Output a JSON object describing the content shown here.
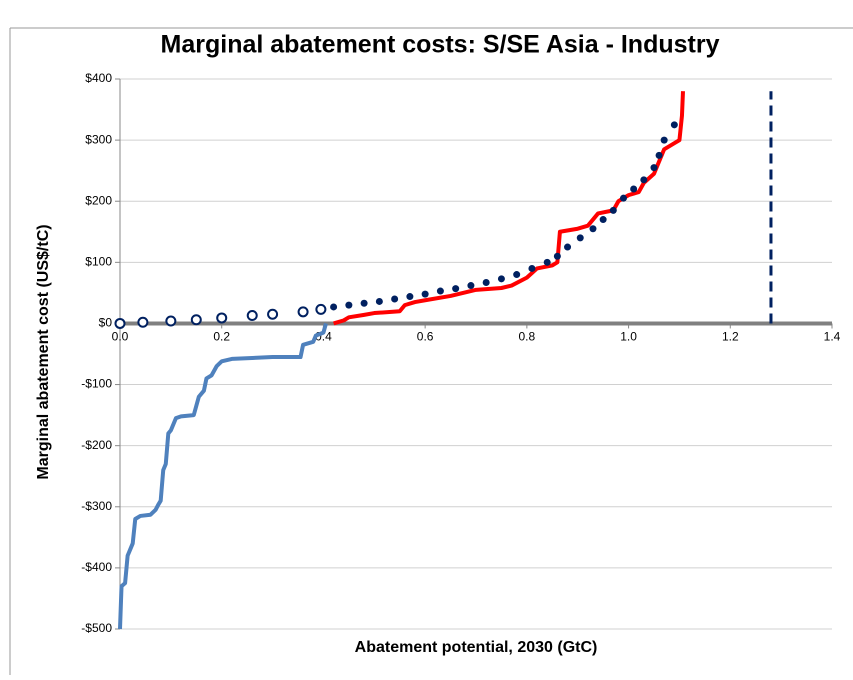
{
  "chart_data": {
    "type": "line",
    "title": "Marginal abatement costs: S/SE Asia - Industry",
    "x_label": "Abatement potential, 2030 (GtC)",
    "y_label": "Marginal abatement cost (US$/tC)",
    "xlim": [
      0,
      1.4
    ],
    "xticks": [
      {
        "value": 0,
        "label": "0.0"
      },
      0.2,
      0.4,
      0.6,
      0.8,
      {
        "value": 1,
        "label": "1.0"
      },
      1.2,
      1.4
    ],
    "ylim": [
      -500,
      400
    ],
    "yticks": [
      {
        "value": 400,
        "label": "$400"
      },
      {
        "value": 300,
        "label": "$300"
      },
      {
        "value": 200,
        "label": "$200"
      },
      {
        "value": 100,
        "label": "$100"
      },
      {
        "value": 0,
        "label": "$0"
      },
      {
        "value": -100,
        "label": "-$100"
      },
      {
        "value": -200,
        "label": "-$200"
      },
      {
        "value": -300,
        "label": "-$300"
      },
      {
        "value": -400,
        "label": "-$400"
      },
      {
        "value": -500,
        "label": "-$500"
      }
    ],
    "grid": true,
    "series": [
      {
        "style": "line",
        "color": "#4f81bd",
        "x": [
          0,
          0.003,
          0.01,
          0.015,
          0.02,
          0.025,
          0.03,
          0.04,
          0.06,
          0.07,
          0.075,
          0.08,
          0.085,
          0.09,
          0.095,
          0.1,
          0.11,
          0.12,
          0.145,
          0.155,
          0.165,
          0.17,
          0.18,
          0.19,
          0.2,
          0.22,
          0.3,
          0.355,
          0.36,
          0.38,
          0.385,
          0.4,
          0.405
        ],
        "values": [
          -500,
          -430,
          -425,
          -380,
          -370,
          -360,
          -320,
          -315,
          -313,
          -305,
          -297,
          -290,
          -240,
          -230,
          -180,
          -175,
          -155,
          -152,
          -150,
          -120,
          -110,
          -90,
          -85,
          -70,
          -62,
          -58,
          -55,
          -55,
          -35,
          -30,
          -20,
          -15,
          0
        ]
      },
      {
        "style": "line",
        "color": "#ff0000",
        "x": [
          0.42,
          0.44,
          0.45,
          0.48,
          0.5,
          0.55,
          0.56,
          0.58,
          0.6,
          0.65,
          0.7,
          0.75,
          0.77,
          0.8,
          0.82,
          0.85,
          0.86,
          0.865,
          0.9,
          0.92,
          0.93,
          0.94,
          0.97,
          0.98,
          1.0,
          1.02,
          1.03,
          1.05,
          1.06,
          1.07,
          1.09,
          1.1,
          1.105,
          1.107
        ],
        "values": [
          0,
          5,
          10,
          14,
          17,
          20,
          30,
          35,
          38,
          45,
          55,
          58,
          62,
          75,
          90,
          95,
          100,
          150,
          155,
          160,
          170,
          180,
          185,
          200,
          210,
          215,
          230,
          245,
          265,
          285,
          295,
          300,
          340,
          380
        ]
      },
      {
        "style": "dots",
        "color": "#002060",
        "x": [
          0.42,
          0.45,
          0.48,
          0.51,
          0.54,
          0.57,
          0.6,
          0.63,
          0.66,
          0.69,
          0.72,
          0.75,
          0.78,
          0.81,
          0.84,
          0.86,
          0.88,
          0.905,
          0.93,
          0.95,
          0.97,
          0.99,
          1.01,
          1.03,
          1.05,
          1.06,
          1.07,
          1.09
        ],
        "values": [
          27,
          30,
          33,
          36,
          40,
          44,
          48,
          53,
          57,
          62,
          67,
          73,
          80,
          90,
          100,
          110,
          125,
          140,
          155,
          170,
          185,
          205,
          220,
          235,
          255,
          275,
          300,
          325
        ]
      },
      {
        "style": "hollow",
        "color": "#002060",
        "x": [
          0,
          0.045,
          0.1,
          0.15,
          0.2,
          0.26,
          0.3,
          0.36,
          0.395
        ],
        "values": [
          0,
          2,
          4,
          6,
          9,
          13,
          15,
          19,
          23
        ]
      },
      {
        "style": "dashed",
        "color": "#002060",
        "x": [
          1.28,
          1.28
        ],
        "values": [
          0,
          380
        ]
      }
    ]
  }
}
